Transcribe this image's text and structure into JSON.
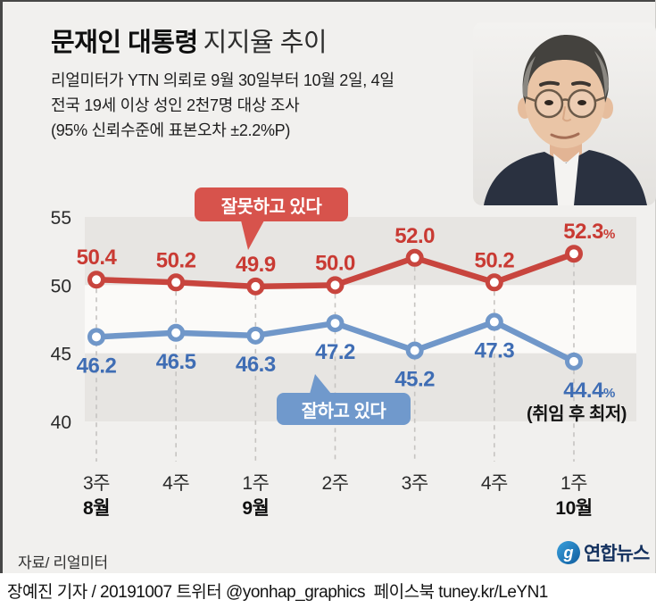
{
  "title": {
    "bold": "문재인 대통령",
    "light": "지지율 추이"
  },
  "subtitle": [
    "리얼미터가 YTN 의뢰로 9월 30일부터 10월 2일, 4일",
    "전국 19세 이상 성인 2천7명 대상 조사",
    "(95% 신뢰수준에 표본오차 ±2.2%P)"
  ],
  "chart_data": {
    "type": "line",
    "categories": [
      "3주",
      "4주",
      "1주",
      "2주",
      "3주",
      "4주",
      "1주"
    ],
    "month_labels": [
      {
        "index": 0,
        "label": "8월"
      },
      {
        "index": 2,
        "label": "9월"
      },
      {
        "index": 6,
        "label": "10월"
      }
    ],
    "yticks": [
      55,
      50,
      45,
      40
    ],
    "ylim": [
      40,
      55
    ],
    "grid": "horizontal-bands",
    "legend_position": "callout-bubbles",
    "series": [
      {
        "name": "잘못하고 있다",
        "values": [
          50.4,
          50.2,
          49.9,
          50.0,
          52.0,
          50.2,
          52.3
        ],
        "color": "#c8453e",
        "label_color": "#c93a33",
        "bubble_color": "#d7534c",
        "last_suffix": "%"
      },
      {
        "name": "잘하고 있다",
        "values": [
          46.2,
          46.5,
          46.3,
          47.2,
          45.2,
          47.3,
          44.4
        ],
        "color": "#7097c9",
        "label_color": "#3f6db4",
        "bubble_color": "#7099cc",
        "last_suffix": "%"
      }
    ],
    "annotation": "(취임 후 최저)"
  },
  "source": {
    "label": "자료/ 리얼미터"
  },
  "logo": {
    "text": "연합뉴스"
  },
  "footer": {
    "credit": "장예진 기자 / 20191007 트위터 @yonhap_graphics  페이스북 tuney.kr/LeYN1"
  }
}
